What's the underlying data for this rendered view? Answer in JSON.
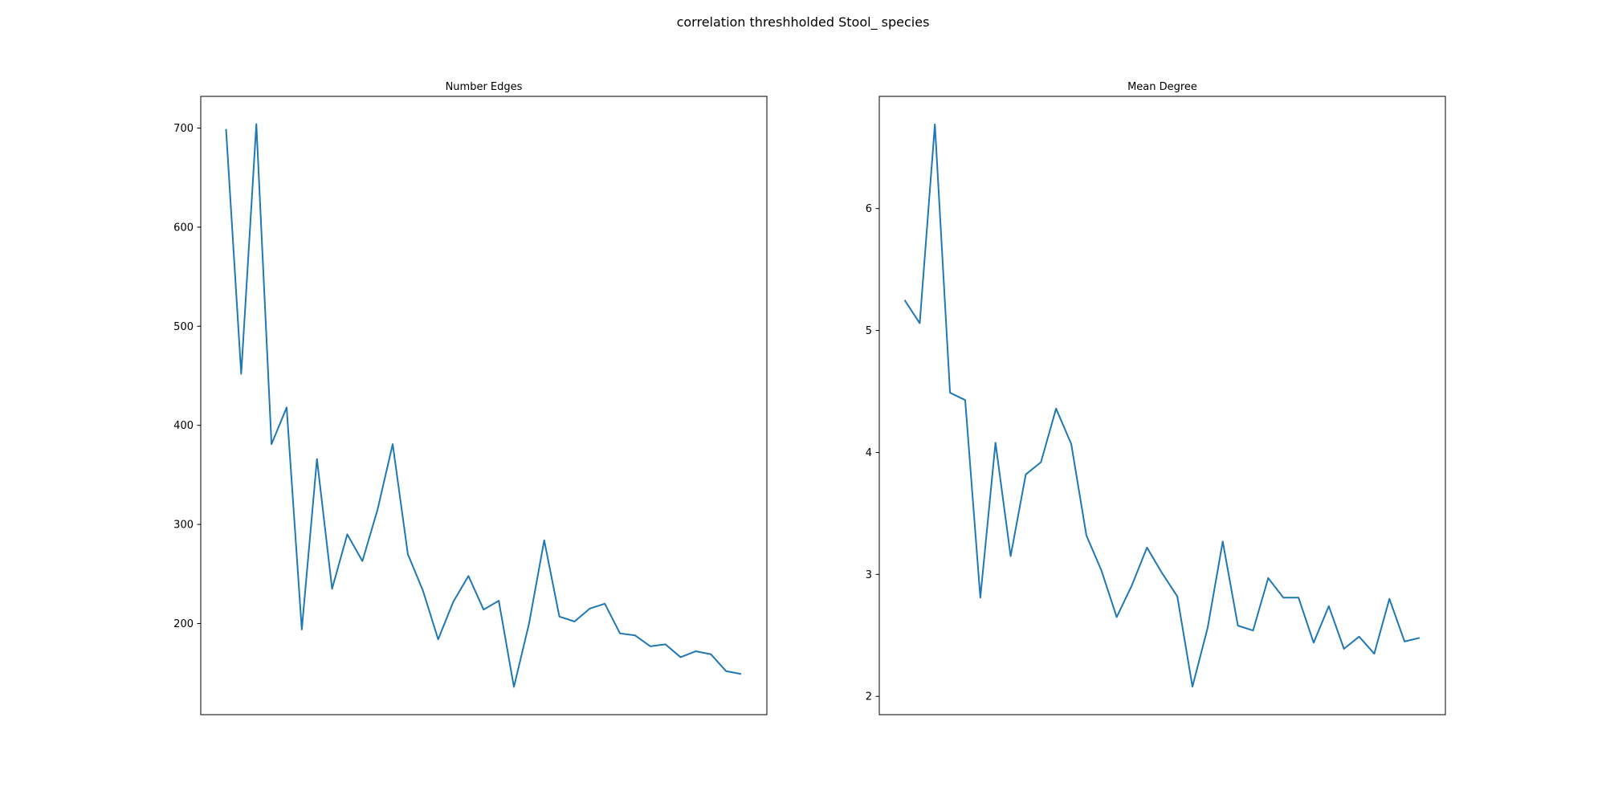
{
  "figure": {
    "title": "correlation threshholded Stool_ species"
  },
  "colors": {
    "line": "#1f77b4",
    "axes": "#000000"
  },
  "chart_data": [
    {
      "type": "line",
      "title": "Number Edges",
      "xlabel": "",
      "ylabel": "",
      "x_ticks_visible": false,
      "yticks": [
        200,
        300,
        400,
        500,
        600,
        700
      ],
      "ylim": [
        108,
        732
      ],
      "values": [
        699,
        452,
        704,
        381,
        418,
        194,
        366,
        235,
        290,
        263,
        315,
        381,
        270,
        233,
        184,
        222,
        248,
        214,
        223,
        136,
        200,
        284,
        207,
        202,
        215,
        220,
        190,
        188,
        177,
        179,
        166,
        172,
        169,
        152,
        149
      ]
    },
    {
      "type": "line",
      "title": "Mean Degree",
      "xlabel": "",
      "ylabel": "",
      "x_ticks_visible": false,
      "yticks": [
        2,
        3,
        4,
        5,
        6
      ],
      "ylim": [
        1.85,
        6.92
      ],
      "values": [
        5.25,
        5.06,
        6.69,
        4.49,
        4.43,
        2.81,
        4.08,
        3.15,
        3.82,
        3.92,
        4.36,
        4.07,
        3.32,
        3.03,
        2.65,
        2.91,
        3.22,
        3.01,
        2.82,
        2.08,
        2.56,
        3.27,
        2.58,
        2.54,
        2.97,
        2.81,
        2.81,
        2.44,
        2.74,
        2.39,
        2.49,
        2.35,
        2.8,
        2.45,
        2.48
      ]
    }
  ]
}
